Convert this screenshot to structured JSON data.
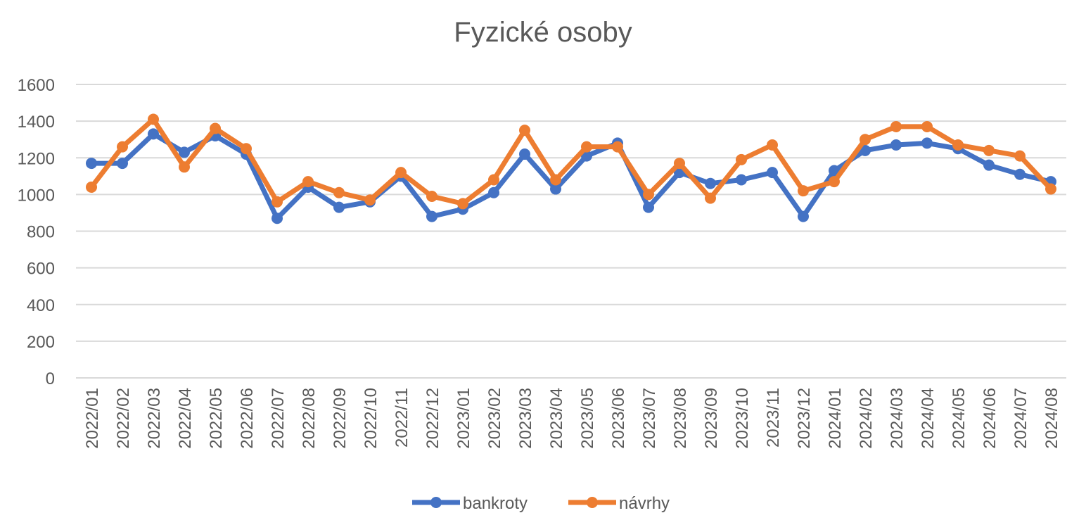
{
  "chart_data": {
    "type": "line",
    "title": "Fyzické osoby",
    "xlabel": "",
    "ylabel": "",
    "ylim": [
      0,
      1600
    ],
    "y_ticks": [
      0,
      200,
      400,
      600,
      800,
      1000,
      1200,
      1400,
      1600
    ],
    "grid": true,
    "legend_position": "bottom",
    "categories": [
      "2022/01",
      "2022/02",
      "2022/03",
      "2022/04",
      "2022/05",
      "2022/06",
      "2022/07",
      "2022/08",
      "2022/09",
      "2022/10",
      "2022/11",
      "2022/12",
      "2023/01",
      "2023/02",
      "2023/03",
      "2023/04",
      "2023/05",
      "2023/06",
      "2023/07",
      "2023/08",
      "2023/09",
      "2023/10",
      "2023/11",
      "2023/12",
      "2024/01",
      "2024/02",
      "2024/03",
      "2024/04",
      "2024/05",
      "2024/06",
      "2024/07",
      "2024/08"
    ],
    "series": [
      {
        "name": "bankroty",
        "color": "#4472C4",
        "values": [
          1170,
          1170,
          1330,
          1230,
          1320,
          1220,
          870,
          1040,
          930,
          960,
          1100,
          880,
          920,
          1010,
          1220,
          1030,
          1210,
          1280,
          930,
          1120,
          1060,
          1080,
          1120,
          880,
          1130,
          1240,
          1270,
          1280,
          1250,
          1160,
          1110,
          1070
        ]
      },
      {
        "name": "návrhy",
        "color": "#ED7D31",
        "values": [
          1040,
          1260,
          1410,
          1150,
          1360,
          1250,
          960,
          1070,
          1010,
          970,
          1120,
          990,
          950,
          1080,
          1350,
          1080,
          1260,
          1260,
          1000,
          1170,
          980,
          1190,
          1270,
          1020,
          1070,
          1300,
          1370,
          1370,
          1270,
          1240,
          1210,
          1030
        ]
      }
    ]
  }
}
